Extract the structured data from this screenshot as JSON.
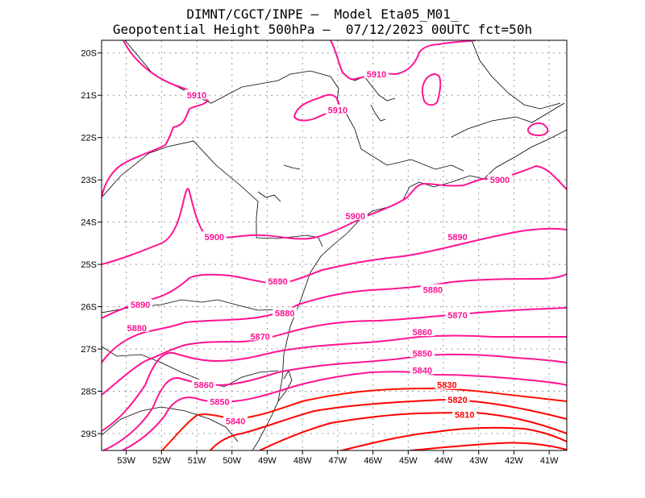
{
  "title": {
    "line1": "DIMNT/CGCT/INPE –  Model Eta05_M01_",
    "line2": "Geopotential Height 500hPa –  07/12/2023 00UTC fct=50h"
  },
  "colors": {
    "high": "#ff1493",
    "low": "#ff0000",
    "coast": "#000000",
    "grid": "#999999"
  },
  "axes": {
    "lon_ticks": [
      "53W",
      "52W",
      "51W",
      "50W",
      "49W",
      "48W",
      "47W",
      "46W",
      "45W",
      "44W",
      "43W",
      "42W",
      "41W"
    ],
    "lat_ticks": [
      "20S",
      "21S",
      "22S",
      "23S",
      "24S",
      "25S",
      "26S",
      "27S",
      "28S",
      "29S"
    ]
  },
  "chart_data": {
    "type": "contour",
    "variable": "Geopotential Height 500hPa",
    "lon_range": [
      -53.7,
      -40.5
    ],
    "lat_range": [
      -29.4,
      -19.7
    ],
    "contour_labels": [
      {
        "text": "5910",
        "lon": -51.0,
        "lat": -21.0
      },
      {
        "text": "5910",
        "lon": -45.9,
        "lat": -20.5
      },
      {
        "text": "5910",
        "lon": -47.0,
        "lat": -21.35
      },
      {
        "text": "5900",
        "lon": -42.4,
        "lat": -23.0
      },
      {
        "text": "5900",
        "lon": -46.5,
        "lat": -23.85
      },
      {
        "text": "5900",
        "lon": -50.5,
        "lat": -24.35
      },
      {
        "text": "5890",
        "lon": -43.6,
        "lat": -24.35
      },
      {
        "text": "5890",
        "lon": -48.7,
        "lat": -25.4
      },
      {
        "text": "5890",
        "lon": -52.6,
        "lat": -25.95
      },
      {
        "text": "5880",
        "lon": -44.3,
        "lat": -25.6
      },
      {
        "text": "5880",
        "lon": -48.5,
        "lat": -26.15
      },
      {
        "text": "5880",
        "lon": -52.7,
        "lat": -26.5
      },
      {
        "text": "5870",
        "lon": -43.6,
        "lat": -26.2
      },
      {
        "text": "5870",
        "lon": -49.2,
        "lat": -26.7
      },
      {
        "text": "5860",
        "lon": -44.6,
        "lat": -26.6
      },
      {
        "text": "5860",
        "lon": -50.8,
        "lat": -27.85
      },
      {
        "text": "5850",
        "lon": -44.6,
        "lat": -27.1
      },
      {
        "text": "5850",
        "lon": -50.35,
        "lat": -28.25
      },
      {
        "text": "5840",
        "lon": -44.6,
        "lat": -27.5
      },
      {
        "text": "5840",
        "lon": -49.9,
        "lat": -28.7
      },
      {
        "text": "5830",
        "lon": -43.9,
        "lat": -27.85
      },
      {
        "text": "5820",
        "lon": -43.6,
        "lat": -28.2
      },
      {
        "text": "5810",
        "lon": -43.4,
        "lat": -28.55
      }
    ]
  }
}
